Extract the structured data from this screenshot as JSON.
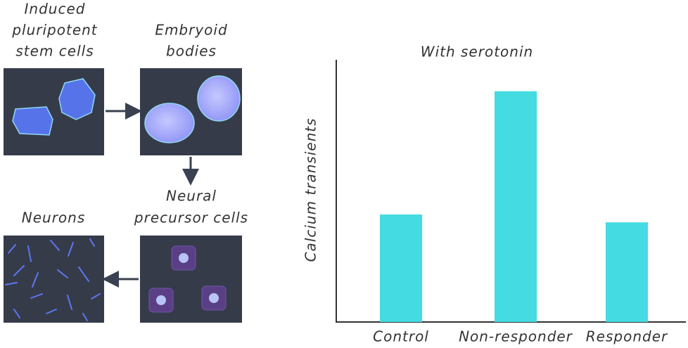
{
  "nodes": [
    {
      "lines": [
        "Induced",
        "pluripotent",
        "stem cells"
      ]
    },
    {
      "lines": [
        "Embryoid",
        "bodies"
      ]
    },
    {
      "lines": [
        "Neural",
        "precursor cells"
      ]
    },
    {
      "lines": [
        "Neurons"
      ]
    }
  ],
  "chart_data": {
    "type": "bar",
    "title": "With serotonin",
    "y_label": "Calcium transients",
    "categories": [
      "Control",
      "Non-responder",
      "Responder"
    ],
    "values": [
      41,
      88,
      38
    ],
    "color": "#44dbe2",
    "ylim": [
      0,
      100
    ]
  }
}
